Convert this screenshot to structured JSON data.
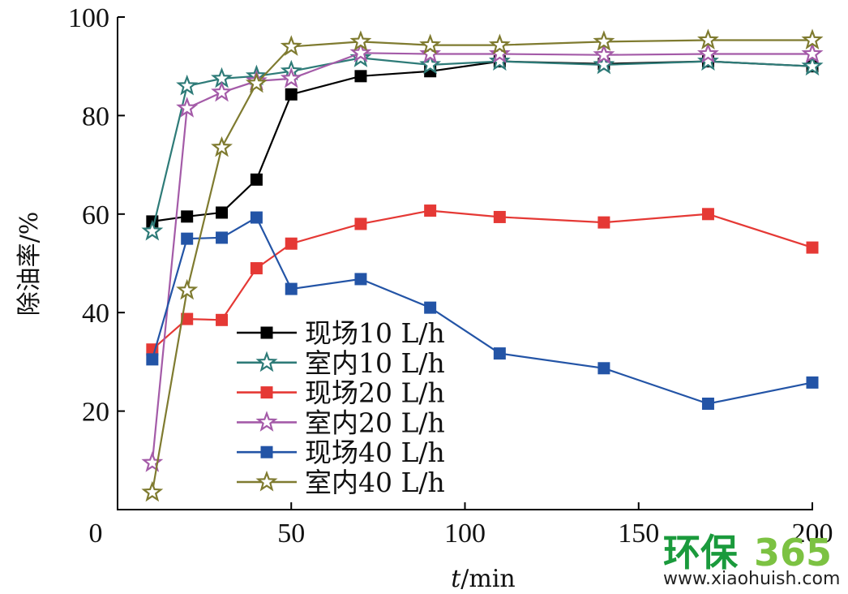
{
  "chart_data": {
    "type": "line",
    "xlabel": "t/min",
    "xlabel_italic": "t",
    "xlabel_rest": "/min",
    "ylabel": "除油率/%",
    "xlim": [
      0,
      200
    ],
    "ylim": [
      0,
      100
    ],
    "xticks": [
      0,
      50,
      100,
      150,
      200
    ],
    "yticks": [
      20,
      40,
      60,
      80,
      100
    ],
    "grid": false,
    "legend_position": "bottom-center",
    "series": [
      {
        "name": "现场10 L/h",
        "color": "#000000",
        "marker": "square",
        "x": [
          10,
          20,
          30,
          40,
          50,
          70,
          90,
          110,
          140,
          170,
          200
        ],
        "y": [
          58.5,
          59.5,
          60.3,
          67,
          84.3,
          88,
          89,
          91,
          90.5,
          91,
          90
        ]
      },
      {
        "name": "室内10 L/h",
        "color": "#2e7b78",
        "marker": "star",
        "x": [
          10,
          20,
          30,
          40,
          50,
          70,
          90,
          110,
          140,
          170,
          200
        ],
        "y": [
          56.5,
          86,
          87.5,
          88,
          89,
          91.7,
          90.3,
          91,
          90.3,
          91,
          90
        ]
      },
      {
        "name": "现场20 L/h",
        "color": "#e53935",
        "marker": "square",
        "x": [
          10,
          20,
          30,
          40,
          50,
          70,
          90,
          110,
          140,
          170,
          200
        ],
        "y": [
          32.5,
          38.7,
          38.5,
          49,
          54,
          58,
          60.7,
          59.4,
          58.3,
          60,
          53.2
        ]
      },
      {
        "name": "室内20 L/h",
        "color": "#a45ba8",
        "marker": "star",
        "x": [
          10,
          20,
          30,
          40,
          50,
          70,
          90,
          110,
          140,
          170,
          200
        ],
        "y": [
          9.5,
          81.5,
          84.7,
          87,
          87.5,
          92.7,
          92.5,
          92.5,
          92.3,
          92.5,
          92.5
        ]
      },
      {
        "name": "现场40 L/h",
        "color": "#2354a6",
        "marker": "square",
        "x": [
          10,
          20,
          30,
          40,
          50,
          70,
          90,
          110,
          140,
          170,
          200
        ],
        "y": [
          30.5,
          55,
          55.2,
          59.3,
          44.8,
          46.8,
          41,
          31.7,
          28.7,
          21.5,
          25.8
        ]
      },
      {
        "name": "室内40 L/h",
        "color": "#7f7b30",
        "marker": "star",
        "x": [
          10,
          20,
          30,
          40,
          50,
          70,
          90,
          110,
          140,
          170,
          200
        ],
        "y": [
          3.5,
          44.5,
          73.5,
          86.5,
          94,
          95,
          94.3,
          94.3,
          95,
          95.3,
          95.3
        ]
      }
    ]
  },
  "watermark": {
    "brand_left": "环保",
    "brand_right": "365",
    "url": "www.xiaohuish.com",
    "colors": {
      "brand_left": "#1a9a3c",
      "brand_right": "#7cc242"
    }
  }
}
